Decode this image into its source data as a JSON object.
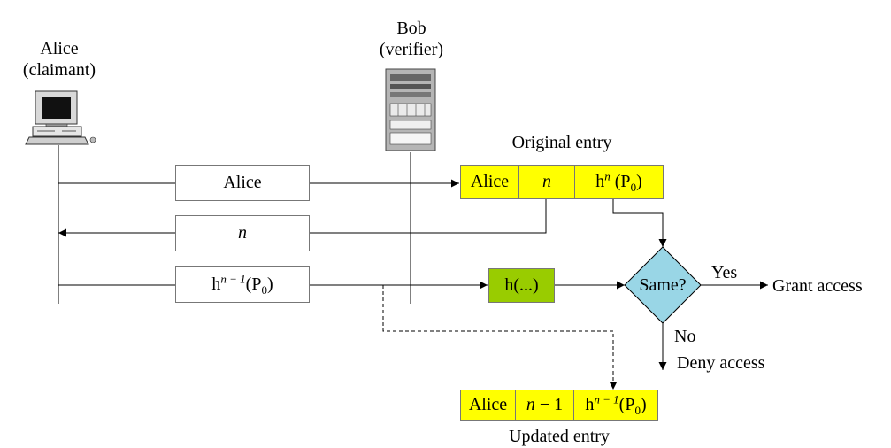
{
  "actors": {
    "alice": {
      "name": "Alice",
      "role": "(claimant)"
    },
    "bob": {
      "name": "Bob",
      "role": "(verifier)"
    }
  },
  "messages": {
    "m1": "Alice",
    "m2": "n",
    "m3": {
      "base": "h",
      "exp": "n − 1",
      "arg_open": "(P",
      "arg_sub": "0",
      "arg_close": ")"
    }
  },
  "original_entry": {
    "caption": "Original entry",
    "name": "Alice",
    "count": "n",
    "hash": {
      "base": "h",
      "exp": "n",
      "arg_open": " (P",
      "arg_sub": "0",
      "arg_close": ")"
    }
  },
  "hash_function": {
    "label": "h(...)"
  },
  "decision": {
    "label": "Same?",
    "yes": "Yes",
    "no": "No"
  },
  "outcomes": {
    "grant": "Grant access",
    "deny": "Deny access"
  },
  "updated_entry": {
    "caption": "Updated entry",
    "name": "Alice",
    "count": {
      "var": "n",
      "rest": " − 1"
    },
    "hash": {
      "base": "h",
      "exp": "n − 1",
      "arg_open": "(P",
      "arg_sub": "0",
      "arg_close": ")"
    }
  },
  "colors": {
    "entry_fill": "#ffff00",
    "hash_box_fill": "#99cc00",
    "decision_fill": "#99d6e6",
    "line": "#000000"
  }
}
